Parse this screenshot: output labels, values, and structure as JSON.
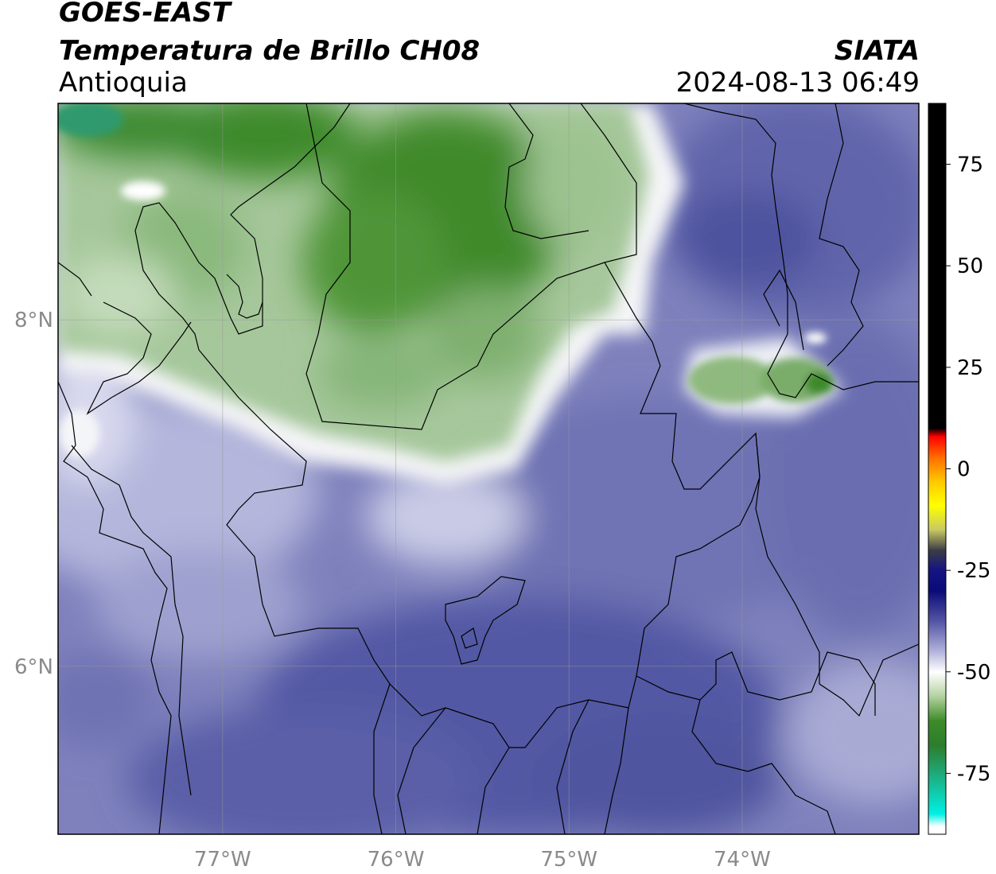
{
  "header": {
    "satellite": "GOES-EAST",
    "product": "Temperatura de Brillo CH08",
    "region": "Antioquia",
    "agency": "SIATA",
    "timestamp": "2024-08-13 06:49"
  },
  "map": {
    "lon_range": [
      -77.95,
      -72.98
    ],
    "lat_range": [
      5.03,
      9.25
    ],
    "lon_ticks": [
      {
        "value": -77,
        "label": "77°W"
      },
      {
        "value": -76,
        "label": "76°W"
      },
      {
        "value": -75,
        "label": "75°W"
      },
      {
        "value": -74,
        "label": "74°W"
      }
    ],
    "lat_ticks": [
      {
        "value": 8,
        "label": "8°N"
      },
      {
        "value": 6,
        "label": "6°N"
      }
    ],
    "colors": {
      "cold_high_cloud": "#2e8b57",
      "cirrus_green": "#3f8a2a",
      "moist_white": "#f2f4f2",
      "mid_lavender": "#8c8fc4",
      "dry_blue": "#4a4f9e",
      "gridline": "#9a9a9a",
      "border": "#000000"
    }
  },
  "colorbar": {
    "range": [
      -90,
      90
    ],
    "ticks": [
      {
        "value": 75,
        "label": "75"
      },
      {
        "value": 50,
        "label": "50"
      },
      {
        "value": 25,
        "label": "25"
      },
      {
        "value": 0,
        "label": "0"
      },
      {
        "value": -25,
        "label": "-25"
      },
      {
        "value": -50,
        "label": "-50"
      },
      {
        "value": -75,
        "label": "-75"
      }
    ],
    "stops": [
      {
        "value": 90,
        "color": "#000000"
      },
      {
        "value": 10,
        "color": "#000000"
      },
      {
        "value": 8,
        "color": "#ff0000"
      },
      {
        "value": 3,
        "color": "#ff6a00"
      },
      {
        "value": -3,
        "color": "#ffc800"
      },
      {
        "value": -9,
        "color": "#ffff00"
      },
      {
        "value": -15,
        "color": "#c8c864"
      },
      {
        "value": -20,
        "color": "#3c3c46"
      },
      {
        "value": -25,
        "color": "#141482"
      },
      {
        "value": -30,
        "color": "#0a0a78"
      },
      {
        "value": -38,
        "color": "#5a5aa8"
      },
      {
        "value": -45,
        "color": "#b4b4dc"
      },
      {
        "value": -50,
        "color": "#ffffff"
      },
      {
        "value": -56,
        "color": "#b4d2a0"
      },
      {
        "value": -62,
        "color": "#3c8c28"
      },
      {
        "value": -68,
        "color": "#2d7d2d"
      },
      {
        "value": -75,
        "color": "#1eaa78"
      },
      {
        "value": -85,
        "color": "#00f0e6"
      },
      {
        "value": -88,
        "color": "#ffffff"
      },
      {
        "value": -90,
        "color": "#ffffff"
      }
    ]
  }
}
